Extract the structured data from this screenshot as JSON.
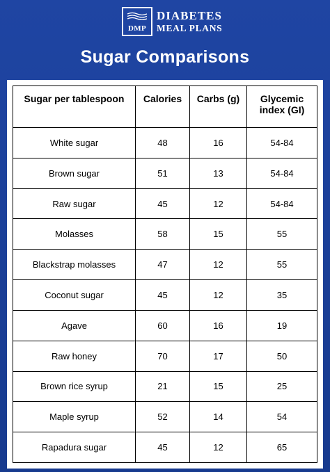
{
  "brand": {
    "logo_text": "DMP",
    "line1": "DIABETES",
    "line2": "MEAL PLANS"
  },
  "title": "Sugar Comparisons",
  "table": {
    "headers": [
      "Sugar per tablespoon",
      "Calories",
      "Carbs (g)",
      "Glycemic index (GI)"
    ],
    "rows": [
      [
        "White sugar",
        "48",
        "16",
        "54-84"
      ],
      [
        "Brown sugar",
        "51",
        "13",
        "54-84"
      ],
      [
        "Raw sugar",
        "45",
        "12",
        "54-84"
      ],
      [
        "Molasses",
        "58",
        "15",
        "55"
      ],
      [
        "Blackstrap molasses",
        "47",
        "12",
        "55"
      ],
      [
        "Coconut sugar",
        "45",
        "12",
        "35"
      ],
      [
        "Agave",
        "60",
        "16",
        "19"
      ],
      [
        "Raw honey",
        "70",
        "17",
        "50"
      ],
      [
        "Brown rice syrup",
        "21",
        "15",
        "25"
      ],
      [
        "Maple syrup",
        "52",
        "14",
        "54"
      ],
      [
        "Rapadura sugar",
        "45",
        "12",
        "65"
      ]
    ]
  },
  "colors": {
    "background": "#1b3a8c",
    "panel": "#ffffff"
  }
}
